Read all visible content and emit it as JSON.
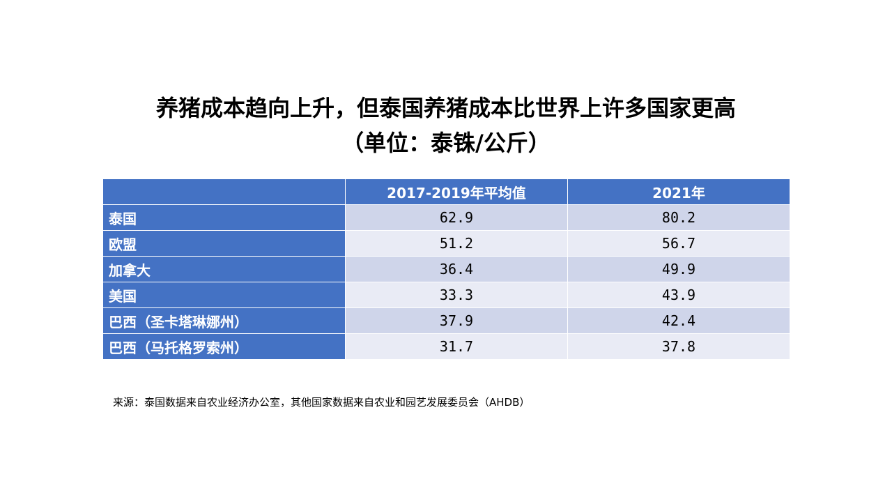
{
  "title": {
    "line1": "养猪成本趋向上升，但泰国养猪成本比世界上许多国家更高",
    "line2": "（单位：泰铢/公斤）"
  },
  "table": {
    "headers": [
      "",
      "2017-2019年平均值",
      "2021年"
    ],
    "rows": [
      {
        "label": "泰国",
        "avg": "62.9",
        "y2021": "80.2"
      },
      {
        "label": "欧盟",
        "avg": "51.2",
        "y2021": "56.7"
      },
      {
        "label": "加拿大",
        "avg": "36.4",
        "y2021": "49.9"
      },
      {
        "label": "美国",
        "avg": "33.3",
        "y2021": "43.9"
      },
      {
        "label": "巴西（圣卡塔琳娜州）",
        "avg": "37.9",
        "y2021": "42.4"
      },
      {
        "label": "巴西（马托格罗索州）",
        "avg": "31.7",
        "y2021": "37.8"
      }
    ]
  },
  "source": "来源：泰国数据来自农业经济办公室，其他国家数据来自农业和园艺发展委员会（AHDB）",
  "colors": {
    "header_bg": "#4472c4",
    "row_odd_bg": "#cfd5ea",
    "row_even_bg": "#e9ebf5"
  }
}
